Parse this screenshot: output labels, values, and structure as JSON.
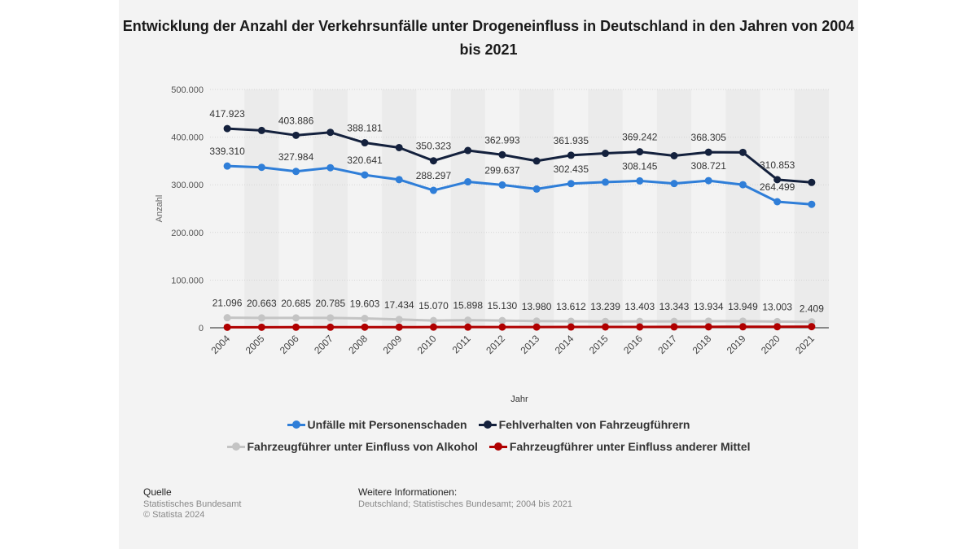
{
  "chart_data": {
    "type": "line",
    "title": "Entwicklung der Anzahl der Verkehrsunfälle unter Drogeneinfluss in Deutschland in den Jahren von 2004 bis 2021",
    "xlabel": "Jahr",
    "ylabel": "Anzahl",
    "ylim": [
      0,
      500000
    ],
    "yticks": [
      0,
      100000,
      200000,
      300000,
      400000,
      500000
    ],
    "ytick_labels": [
      "0",
      "100.000",
      "200.000",
      "300.000",
      "400.000",
      "500.000"
    ],
    "categories": [
      "2004",
      "2005",
      "2006",
      "2007",
      "2008",
      "2009",
      "2010",
      "2011",
      "2012",
      "2013",
      "2014",
      "2015",
      "2016",
      "2017",
      "2018",
      "2019",
      "2020",
      "2021"
    ],
    "series": [
      {
        "name": "Unfälle mit Personenschaden",
        "color": "#2f7ed8",
        "values": [
          339310,
          336619,
          327984,
          335845,
          320641,
          310806,
          288297,
          306266,
          299637,
          291105,
          302435,
          305659,
          308145,
          302656,
          308721,
          300143,
          264499,
          258987
        ],
        "labels": [
          "339.310",
          "",
          "327.984",
          "",
          "320.641",
          "",
          "288.297",
          "",
          "299.637",
          "",
          "302.435",
          "",
          "308.145",
          "",
          "308.721",
          "",
          "264.499",
          ""
        ],
        "label_pos": "above"
      },
      {
        "name": "Fehlverhalten von Fahrzeugführern",
        "color": "#14213d",
        "values": [
          417923,
          414000,
          403886,
          410000,
          388181,
          378000,
          350323,
          372000,
          362993,
          350000,
          361935,
          366000,
          369242,
          361000,
          368305,
          368000,
          310853,
          305000
        ],
        "labels": [
          "417.923",
          "",
          "403.886",
          "",
          "388.181",
          "",
          "350.323",
          "",
          "362.993",
          "",
          "361.935",
          "",
          "369.242",
          "",
          "368.305",
          "",
          "310.853",
          ""
        ],
        "label_pos": "above"
      },
      {
        "name": "Fahrzeugführer unter Einfluss von Alkohol",
        "color": "#c4c4c4",
        "values": [
          21096,
          20663,
          20685,
          20785,
          19603,
          17434,
          15070,
          15898,
          15130,
          13980,
          13612,
          13239,
          13403,
          13343,
          13934,
          13949,
          13003,
          12500
        ],
        "labels": [
          "21.096",
          "20.663",
          "20.685",
          "20.785",
          "19.603",
          "17.434",
          "15.070",
          "15.898",
          "15.130",
          "13.980",
          "13.612",
          "13.239",
          "13.403",
          "13.343",
          "13.934",
          "13.949",
          "13.003",
          ""
        ],
        "label_pos": "above"
      },
      {
        "name": "Fahrzeugführer unter Einfluss anderer Mittel",
        "color": "#b00000",
        "values": [
          1100,
          1150,
          1200,
          1250,
          1300,
          1350,
          1400,
          1450,
          1500,
          1550,
          1600,
          1700,
          1800,
          1900,
          2000,
          2100,
          2200,
          2409
        ],
        "labels": [
          "",
          "",
          "",
          "",
          "",
          "",
          "",
          "",
          "",
          "",
          "",
          "",
          "",
          "",
          "",
          "",
          "",
          "2.409"
        ],
        "label_pos": "above-high"
      }
    ]
  },
  "footer": {
    "source_heading": "Quelle",
    "source_lines": [
      "Statistisches Bundesamt",
      "© Statista 2024"
    ],
    "info_heading": "Weitere Informationen:",
    "info_line": "Deutschland; Statistisches Bundesamt; 2004 bis 2021"
  }
}
